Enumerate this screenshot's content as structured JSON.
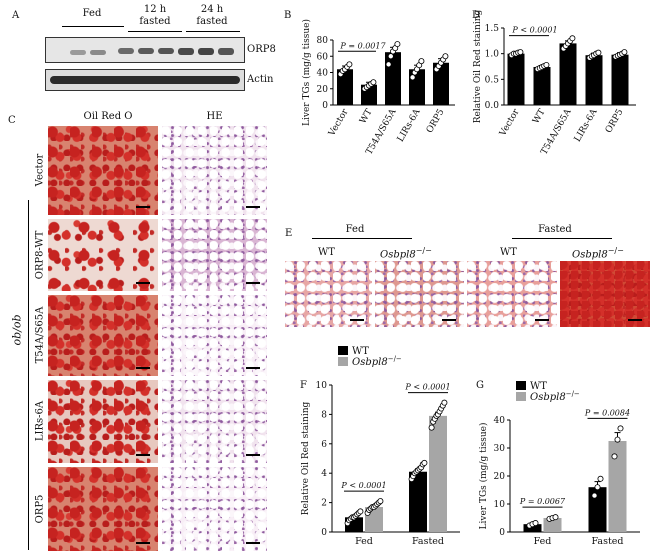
{
  "panel_labels": {
    "A": "A",
    "B": "B",
    "C": "C",
    "D": "D",
    "E": "E",
    "F": "F",
    "G": "G"
  },
  "panelA": {
    "groups": [
      "Fed",
      "12 h\nfasted",
      "24 h\nfasted"
    ],
    "group_line1": [
      "Fed",
      "12 h",
      "24 h"
    ],
    "group_line2": [
      "",
      "fasted",
      "fasted"
    ],
    "blot_labels": [
      "ORP8",
      "Actin"
    ]
  },
  "panelC": {
    "col_headers": [
      "Oil Red O",
      "HE"
    ],
    "row_labels": [
      "Vector",
      "ORP8-WT",
      "T54A/S65A",
      "LIRs-6A",
      "ORP5"
    ],
    "side_label": "ob/ob"
  },
  "panelE": {
    "groups": [
      "Fed",
      "Fasted"
    ],
    "col_labels": [
      "WT",
      "Osbpl8",
      "WT",
      "Osbpl8"
    ],
    "ko_suffix": "−/−"
  },
  "chart_data": [
    {
      "id": "B",
      "type": "bar",
      "categories": [
        "Vector",
        "WT",
        "T54A/S65A",
        "LIRs-6A",
        "ORP5"
      ],
      "values": [
        44,
        25,
        65,
        44,
        52
      ],
      "errors": [
        4,
        3,
        6,
        5,
        5
      ],
      "points": [
        [
          38,
          42,
          44,
          47,
          50
        ],
        [
          20,
          22,
          24,
          26,
          28
        ],
        [
          50,
          60,
          66,
          70,
          75
        ],
        [
          34,
          40,
          44,
          49,
          54
        ],
        [
          44,
          48,
          52,
          56,
          60
        ]
      ],
      "ylabel": "Liver TGs (mg/g tissue)",
      "ylim": [
        0,
        80
      ],
      "yticks": [
        0,
        20,
        40,
        60,
        80
      ],
      "annotation": {
        "text": "P = 0.0017",
        "from": 0,
        "to": 1
      },
      "bar_color": "#000000"
    },
    {
      "id": "D",
      "type": "bar",
      "categories": [
        "Vector",
        "WT",
        "T54A/S65A",
        "LIRs-6A",
        "ORP5"
      ],
      "values": [
        1.0,
        0.74,
        1.2,
        0.97,
        0.98
      ],
      "errors": [
        0.03,
        0.03,
        0.05,
        0.04,
        0.04
      ],
      "points": [
        [
          0.97,
          1.0,
          1.0,
          1.02,
          1.03
        ],
        [
          0.7,
          0.72,
          0.74,
          0.76,
          0.78
        ],
        [
          1.1,
          1.15,
          1.2,
          1.25,
          1.3
        ],
        [
          0.92,
          0.95,
          0.97,
          1.0,
          1.02
        ],
        [
          0.94,
          0.96,
          0.98,
          1.0,
          1.03
        ]
      ],
      "ylabel": "Relative Oil Red staining",
      "ylim": [
        0,
        1.5
      ],
      "yticks": [
        0.0,
        0.5,
        1.0,
        1.5
      ],
      "ytick_labels": [
        "0.0",
        "0.5",
        "1.0",
        "1.5"
      ],
      "annotation": {
        "text": "P < 0.0001",
        "from": 0,
        "to": 1
      },
      "bar_color": "#000000"
    },
    {
      "id": "F",
      "type": "bar",
      "categories": [
        "Fed",
        "Fasted"
      ],
      "series": [
        {
          "name": "WT",
          "values": [
            1.0,
            4.1
          ],
          "errors": [
            0.1,
            0.2
          ],
          "color": "#000000"
        },
        {
          "name": "Osbpl8",
          "values": [
            1.7,
            7.9
          ],
          "errors": [
            0.12,
            0.25
          ],
          "color": "#a6a6a6"
        }
      ],
      "points": [
        [
          [
            0.6,
            0.8,
            0.9,
            1.0,
            1.0,
            1.1,
            1.2,
            1.3,
            1.4
          ],
          [
            1.3,
            1.5,
            1.6,
            1.7,
            1.7,
            1.8,
            1.9,
            2.0,
            2.1
          ]
        ],
        [
          [
            3.6,
            3.8,
            4.0,
            4.1,
            4.2,
            4.3,
            4.4,
            4.6,
            4.7
          ],
          [
            7.1,
            7.5,
            7.7,
            7.9,
            8.0,
            8.2,
            8.4,
            8.6,
            8.8
          ]
        ]
      ],
      "ylabel": "Relative Oil Red staining",
      "ylim": [
        0,
        10
      ],
      "yticks": [
        0,
        2,
        4,
        6,
        8,
        10
      ],
      "annotations": [
        {
          "text": "P < 0.0001",
          "group": 0
        },
        {
          "text": "P < 0.0001",
          "group": 1
        }
      ],
      "legend_suffix": "−/−"
    },
    {
      "id": "G",
      "type": "bar",
      "categories": [
        "Fed",
        "Fasted"
      ],
      "series": [
        {
          "name": "WT",
          "values": [
            2.8,
            16.0
          ],
          "errors": [
            0.4,
            2.0
          ],
          "color": "#000000"
        },
        {
          "name": "Osbpl8",
          "values": [
            5.0,
            32.5
          ],
          "errors": [
            0.4,
            3.0
          ],
          "color": "#a6a6a6"
        }
      ],
      "points": [
        [
          [
            2.3,
            2.8,
            3.2
          ],
          [
            4.7,
            5.0,
            5.3
          ]
        ],
        [
          [
            13,
            16,
            19
          ],
          [
            27,
            33,
            37
          ]
        ]
      ],
      "ylabel": "Liver TGs (mg/g tissue)",
      "ylim": [
        0,
        40
      ],
      "yticks": [
        0,
        10,
        20,
        30,
        40
      ],
      "annotations": [
        {
          "text": "P = 0.0067",
          "group": 0
        },
        {
          "text": "P = 0.0084",
          "group": 1
        }
      ],
      "legend_suffix": "−/−"
    }
  ]
}
